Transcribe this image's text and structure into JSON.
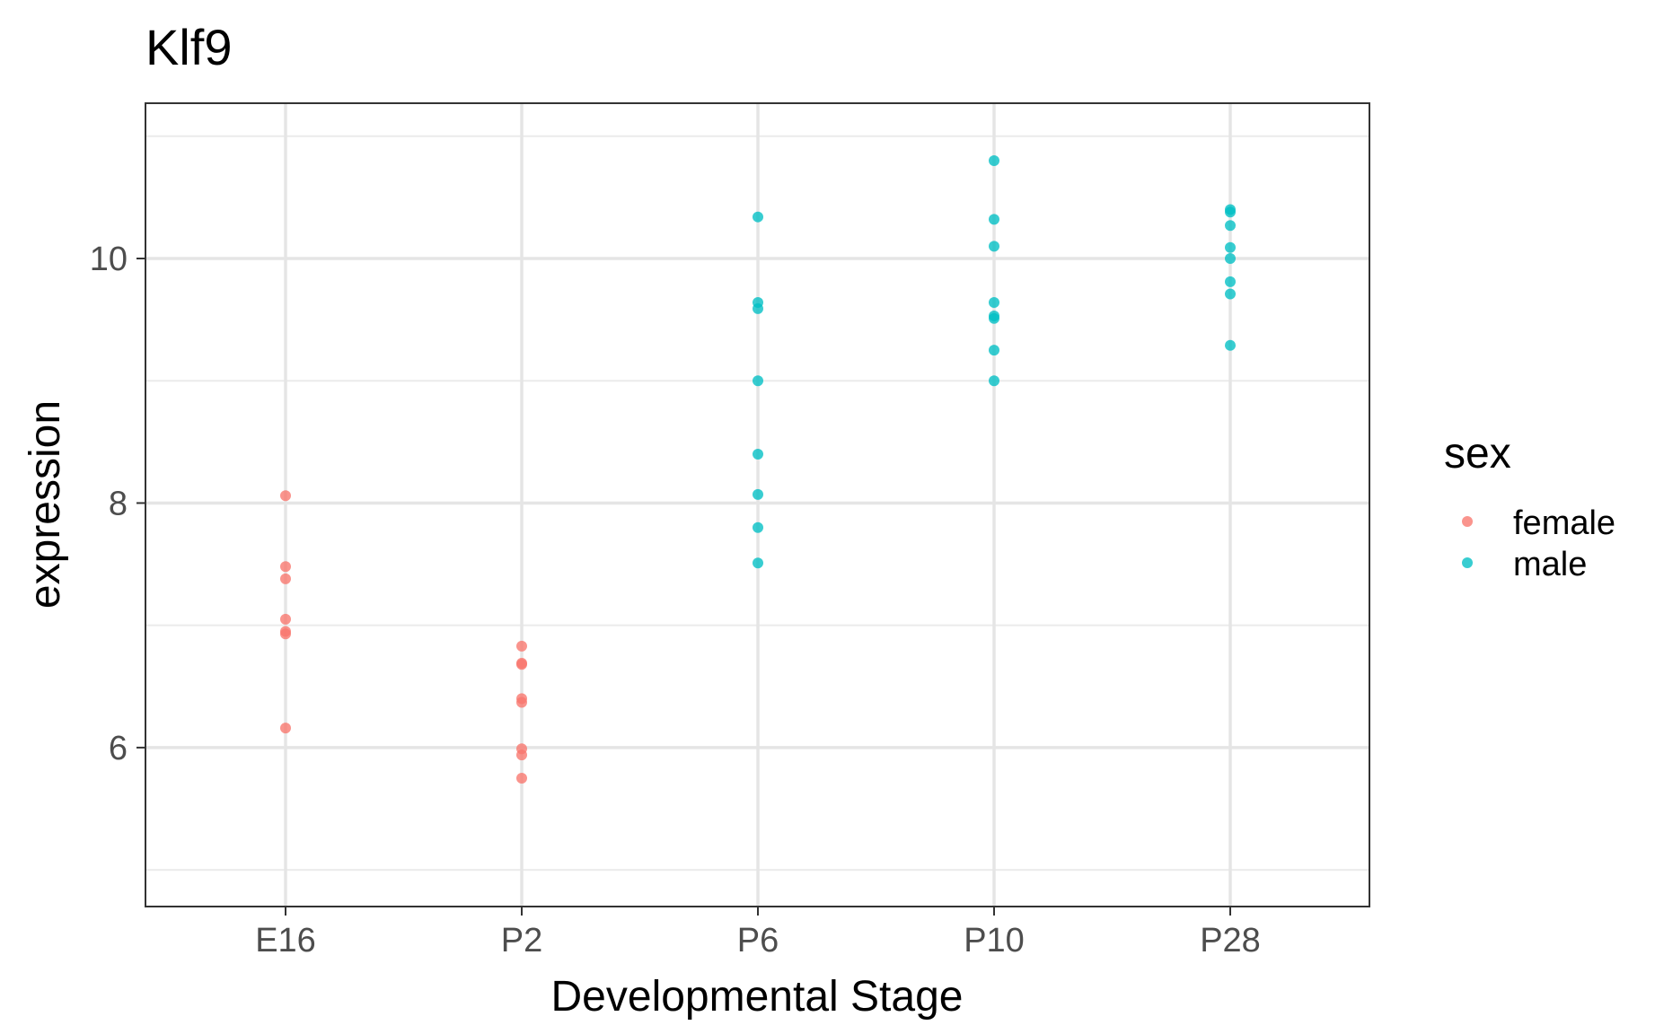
{
  "chart_data": {
    "type": "scatter",
    "title": "Klf9",
    "xlabel": "Developmental Stage",
    "ylabel": "expression",
    "categories": [
      "E16",
      "P2",
      "P6",
      "P10",
      "P28"
    ],
    "ylim": [
      4.7,
      11.27
    ],
    "y_ticks": [
      6,
      8,
      10
    ],
    "y_tick_labels": [
      "6",
      "8",
      "10"
    ],
    "grid": true,
    "legend": {
      "title": "sex",
      "position": "right",
      "entries": [
        {
          "name": "female",
          "color": "#F8766D"
        },
        {
          "name": "male",
          "color": "#00BFC4"
        }
      ]
    },
    "series": [
      {
        "name": "female",
        "color": "#F8766D",
        "points": [
          {
            "x": "E16",
            "y": 8.06
          },
          {
            "x": "E16",
            "y": 7.48
          },
          {
            "x": "E16",
            "y": 7.38
          },
          {
            "x": "E16",
            "y": 7.05
          },
          {
            "x": "E16",
            "y": 6.95
          },
          {
            "x": "E16",
            "y": 6.93
          },
          {
            "x": "E16",
            "y": 6.16
          },
          {
            "x": "P2",
            "y": 6.83
          },
          {
            "x": "P2",
            "y": 6.69
          },
          {
            "x": "P2",
            "y": 6.68
          },
          {
            "x": "P2",
            "y": 6.4
          },
          {
            "x": "P2",
            "y": 6.37
          },
          {
            "x": "P2",
            "y": 5.99
          },
          {
            "x": "P2",
            "y": 5.94
          },
          {
            "x": "P2",
            "y": 5.75
          }
        ]
      },
      {
        "name": "male",
        "color": "#00BFC4",
        "points": [
          {
            "x": "P6",
            "y": 10.34
          },
          {
            "x": "P6",
            "y": 9.64
          },
          {
            "x": "P6",
            "y": 9.59
          },
          {
            "x": "P6",
            "y": 9.0
          },
          {
            "x": "P6",
            "y": 8.4
          },
          {
            "x": "P6",
            "y": 8.07
          },
          {
            "x": "P6",
            "y": 7.8
          },
          {
            "x": "P6",
            "y": 7.51
          },
          {
            "x": "P10",
            "y": 10.8
          },
          {
            "x": "P10",
            "y": 10.32
          },
          {
            "x": "P10",
            "y": 10.1
          },
          {
            "x": "P10",
            "y": 9.64
          },
          {
            "x": "P10",
            "y": 9.53
          },
          {
            "x": "P10",
            "y": 9.51
          },
          {
            "x": "P10",
            "y": 9.25
          },
          {
            "x": "P10",
            "y": 9.0
          },
          {
            "x": "P28",
            "y": 10.4
          },
          {
            "x": "P28",
            "y": 10.38
          },
          {
            "x": "P28",
            "y": 10.27
          },
          {
            "x": "P28",
            "y": 10.09
          },
          {
            "x": "P28",
            "y": 10.0
          },
          {
            "x": "P28",
            "y": 9.81
          },
          {
            "x": "P28",
            "y": 9.71
          },
          {
            "x": "P28",
            "y": 9.29
          }
        ]
      }
    ]
  }
}
